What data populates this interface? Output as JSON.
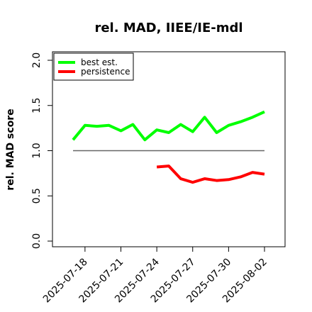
{
  "chart_data": {
    "type": "line",
    "title": "rel. MAD, IIEE/IE-mdl",
    "xlabel": "",
    "ylabel": "rel. MAD score",
    "ylim": [
      0.0,
      2.1
    ],
    "yticks": [
      "0.0",
      "0.5",
      "1.0",
      "1.5",
      "2.0"
    ],
    "x_dates": [
      "2025-07-17",
      "2025-07-18",
      "2025-07-19",
      "2025-07-20",
      "2025-07-21",
      "2025-07-22",
      "2025-07-23",
      "2025-07-24",
      "2025-07-25",
      "2025-07-26",
      "2025-07-27",
      "2025-07-28",
      "2025-07-29",
      "2025-07-30",
      "2025-07-31",
      "2025-08-01",
      "2025-08-02"
    ],
    "xtick_labels": [
      "2025-07-18",
      "2025-07-21",
      "2025-07-24",
      "2025-07-27",
      "2025-07-30",
      "2025-08-02"
    ],
    "reference_line": 1.0,
    "legend_position": "top-left",
    "grid": false,
    "series": [
      {
        "name": "best est.",
        "color": "#00ff00",
        "values": [
          1.12,
          1.28,
          1.27,
          1.28,
          1.22,
          1.29,
          1.12,
          1.23,
          1.2,
          1.29,
          1.21,
          1.37,
          1.2,
          1.28,
          1.32,
          1.37,
          1.43
        ]
      },
      {
        "name": "persistence",
        "color": "#ff0000",
        "values": [
          null,
          null,
          null,
          null,
          null,
          null,
          null,
          0.82,
          0.83,
          0.69,
          0.65,
          0.69,
          0.67,
          0.68,
          0.71,
          0.76,
          0.74
        ]
      }
    ]
  }
}
